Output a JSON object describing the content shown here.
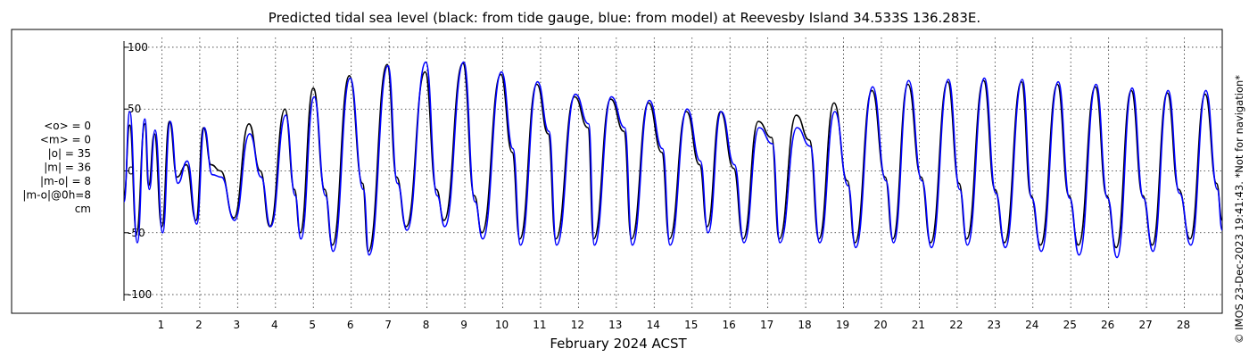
{
  "chart_data": {
    "type": "line",
    "title": "Predicted tidal sea level (black: from tide gauge, blue: from model) at Reevesby Island 34.533S 136.283E.",
    "xlabel": "February 2024 ACST",
    "ylabel": "",
    "xlim": [
      0,
      29
    ],
    "ylim": [
      -105,
      105
    ],
    "yticks": [
      -100,
      -50,
      0,
      50,
      100
    ],
    "ytick_labels": [
      "-100",
      "-50",
      "0",
      "50",
      "100"
    ],
    "xticks": [
      1,
      2,
      3,
      4,
      5,
      6,
      7,
      8,
      9,
      10,
      11,
      12,
      13,
      14,
      15,
      16,
      17,
      18,
      19,
      20,
      21,
      22,
      23,
      24,
      25,
      26,
      27,
      28
    ],
    "xtick_labels": [
      "1",
      "2",
      "3",
      "4",
      "5",
      "6",
      "7",
      "8",
      "9",
      "10",
      "11",
      "12",
      "13",
      "14",
      "15",
      "16",
      "17",
      "18",
      "19",
      "20",
      "21",
      "22",
      "23",
      "24",
      "25",
      "26",
      "27",
      "28"
    ],
    "grid": true,
    "series": [
      {
        "name": "tide gauge",
        "color": "#000000",
        "peaks": [
          [
            0.0,
            -20
          ],
          [
            0.15,
            37
          ],
          [
            0.33,
            -50
          ],
          [
            0.55,
            38
          ],
          [
            0.65,
            -12
          ],
          [
            0.8,
            30
          ],
          [
            1.0,
            -45
          ],
          [
            1.2,
            40
          ],
          [
            1.4,
            -5
          ],
          [
            1.65,
            5
          ],
          [
            1.9,
            -40
          ],
          [
            2.1,
            35
          ],
          [
            2.3,
            5
          ],
          [
            2.55,
            0
          ],
          [
            2.9,
            -38
          ],
          [
            3.3,
            38
          ],
          [
            3.6,
            0
          ],
          [
            3.85,
            -45
          ],
          [
            4.25,
            50
          ],
          [
            4.5,
            -15
          ],
          [
            4.65,
            -50
          ],
          [
            5.0,
            67
          ],
          [
            5.3,
            -15
          ],
          [
            5.5,
            -60
          ],
          [
            5.95,
            77
          ],
          [
            6.3,
            -10
          ],
          [
            6.45,
            -65
          ],
          [
            6.95,
            86
          ],
          [
            7.2,
            -5
          ],
          [
            7.45,
            -45
          ],
          [
            7.95,
            80
          ],
          [
            8.25,
            -15
          ],
          [
            8.45,
            -40
          ],
          [
            8.95,
            87
          ],
          [
            9.25,
            -20
          ],
          [
            9.45,
            -50
          ],
          [
            9.95,
            78
          ],
          [
            10.25,
            15
          ],
          [
            10.45,
            -55
          ],
          [
            10.9,
            70
          ],
          [
            11.2,
            30
          ],
          [
            11.4,
            -55
          ],
          [
            11.9,
            60
          ],
          [
            12.25,
            35
          ],
          [
            12.4,
            -55
          ],
          [
            12.85,
            58
          ],
          [
            13.2,
            32
          ],
          [
            13.4,
            -55
          ],
          [
            13.85,
            55
          ],
          [
            14.2,
            15
          ],
          [
            14.4,
            -55
          ],
          [
            14.85,
            48
          ],
          [
            15.2,
            5
          ],
          [
            15.4,
            -45
          ],
          [
            15.75,
            48
          ],
          [
            16.1,
            2
          ],
          [
            16.35,
            -55
          ],
          [
            16.75,
            40
          ],
          [
            17.1,
            27
          ],
          [
            17.3,
            -55
          ],
          [
            17.75,
            45
          ],
          [
            18.1,
            25
          ],
          [
            18.35,
            -55
          ],
          [
            18.75,
            55
          ],
          [
            19.1,
            -8
          ],
          [
            19.3,
            -58
          ],
          [
            19.75,
            65
          ],
          [
            20.1,
            -5
          ],
          [
            20.3,
            -55
          ],
          [
            20.7,
            70
          ],
          [
            21.05,
            -5
          ],
          [
            21.3,
            -58
          ],
          [
            21.75,
            72
          ],
          [
            22.05,
            -10
          ],
          [
            22.25,
            -55
          ],
          [
            22.7,
            73
          ],
          [
            23.0,
            -15
          ],
          [
            23.25,
            -58
          ],
          [
            23.7,
            72
          ],
          [
            23.95,
            -20
          ],
          [
            24.2,
            -60
          ],
          [
            24.65,
            70
          ],
          [
            24.95,
            -20
          ],
          [
            25.2,
            -60
          ],
          [
            25.65,
            68
          ],
          [
            25.95,
            -20
          ],
          [
            26.2,
            -62
          ],
          [
            26.6,
            65
          ],
          [
            26.9,
            -20
          ],
          [
            27.15,
            -60
          ],
          [
            27.55,
            63
          ],
          [
            27.85,
            -15
          ],
          [
            28.15,
            -55
          ],
          [
            28.55,
            62
          ],
          [
            28.85,
            -10
          ],
          [
            29.0,
            -40
          ]
        ]
      },
      {
        "name": "model",
        "color": "#0000ff",
        "peaks": [
          [
            0.0,
            -25
          ],
          [
            0.15,
            48
          ],
          [
            0.35,
            -58
          ],
          [
            0.55,
            42
          ],
          [
            0.67,
            -15
          ],
          [
            0.82,
            33
          ],
          [
            1.02,
            -50
          ],
          [
            1.22,
            40
          ],
          [
            1.42,
            -10
          ],
          [
            1.67,
            8
          ],
          [
            1.92,
            -43
          ],
          [
            2.12,
            35
          ],
          [
            2.33,
            -3
          ],
          [
            2.57,
            -5
          ],
          [
            2.92,
            -40
          ],
          [
            3.32,
            30
          ],
          [
            3.62,
            -5
          ],
          [
            3.87,
            -45
          ],
          [
            4.27,
            45
          ],
          [
            4.52,
            -20
          ],
          [
            4.67,
            -55
          ],
          [
            5.02,
            60
          ],
          [
            5.32,
            -20
          ],
          [
            5.52,
            -65
          ],
          [
            5.97,
            75
          ],
          [
            6.32,
            -15
          ],
          [
            6.47,
            -68
          ],
          [
            6.97,
            85
          ],
          [
            7.22,
            -10
          ],
          [
            7.47,
            -48
          ],
          [
            7.97,
            88
          ],
          [
            8.27,
            -20
          ],
          [
            8.47,
            -45
          ],
          [
            8.97,
            88
          ],
          [
            9.27,
            -25
          ],
          [
            9.47,
            -55
          ],
          [
            9.97,
            80
          ],
          [
            10.27,
            18
          ],
          [
            10.47,
            -60
          ],
          [
            10.92,
            72
          ],
          [
            11.22,
            32
          ],
          [
            11.42,
            -60
          ],
          [
            11.92,
            62
          ],
          [
            12.27,
            38
          ],
          [
            12.42,
            -60
          ],
          [
            12.87,
            60
          ],
          [
            13.22,
            35
          ],
          [
            13.42,
            -60
          ],
          [
            13.87,
            57
          ],
          [
            14.22,
            18
          ],
          [
            14.42,
            -60
          ],
          [
            14.87,
            50
          ],
          [
            15.22,
            8
          ],
          [
            15.42,
            -50
          ],
          [
            15.77,
            48
          ],
          [
            16.12,
            5
          ],
          [
            16.37,
            -58
          ],
          [
            16.77,
            35
          ],
          [
            17.12,
            22
          ],
          [
            17.32,
            -58
          ],
          [
            17.77,
            35
          ],
          [
            18.12,
            20
          ],
          [
            18.37,
            -58
          ],
          [
            18.77,
            48
          ],
          [
            19.12,
            -12
          ],
          [
            19.32,
            -62
          ],
          [
            19.77,
            68
          ],
          [
            20.12,
            -8
          ],
          [
            20.32,
            -58
          ],
          [
            20.72,
            73
          ],
          [
            21.07,
            -8
          ],
          [
            21.32,
            -62
          ],
          [
            21.77,
            74
          ],
          [
            22.07,
            -15
          ],
          [
            22.27,
            -60
          ],
          [
            22.72,
            75
          ],
          [
            23.02,
            -18
          ],
          [
            23.27,
            -62
          ],
          [
            23.72,
            74
          ],
          [
            23.97,
            -22
          ],
          [
            24.22,
            -65
          ],
          [
            24.67,
            72
          ],
          [
            24.97,
            -22
          ],
          [
            25.22,
            -68
          ],
          [
            25.67,
            70
          ],
          [
            25.97,
            -22
          ],
          [
            26.22,
            -70
          ],
          [
            26.62,
            67
          ],
          [
            26.92,
            -22
          ],
          [
            27.17,
            -65
          ],
          [
            27.57,
            65
          ],
          [
            27.87,
            -18
          ],
          [
            28.17,
            -60
          ],
          [
            28.57,
            65
          ],
          [
            28.87,
            -15
          ],
          [
            29.0,
            -48
          ]
        ]
      }
    ]
  },
  "stats": [
    "<o> = 0",
    "<m> = 0",
    "|o| = 35",
    "|m| = 36",
    "|m-o| = 8",
    "|m-o|@0h=8",
    "cm"
  ],
  "credit": "© IMOS 23-Dec-2023 19:41:43. *Not for navigation*"
}
